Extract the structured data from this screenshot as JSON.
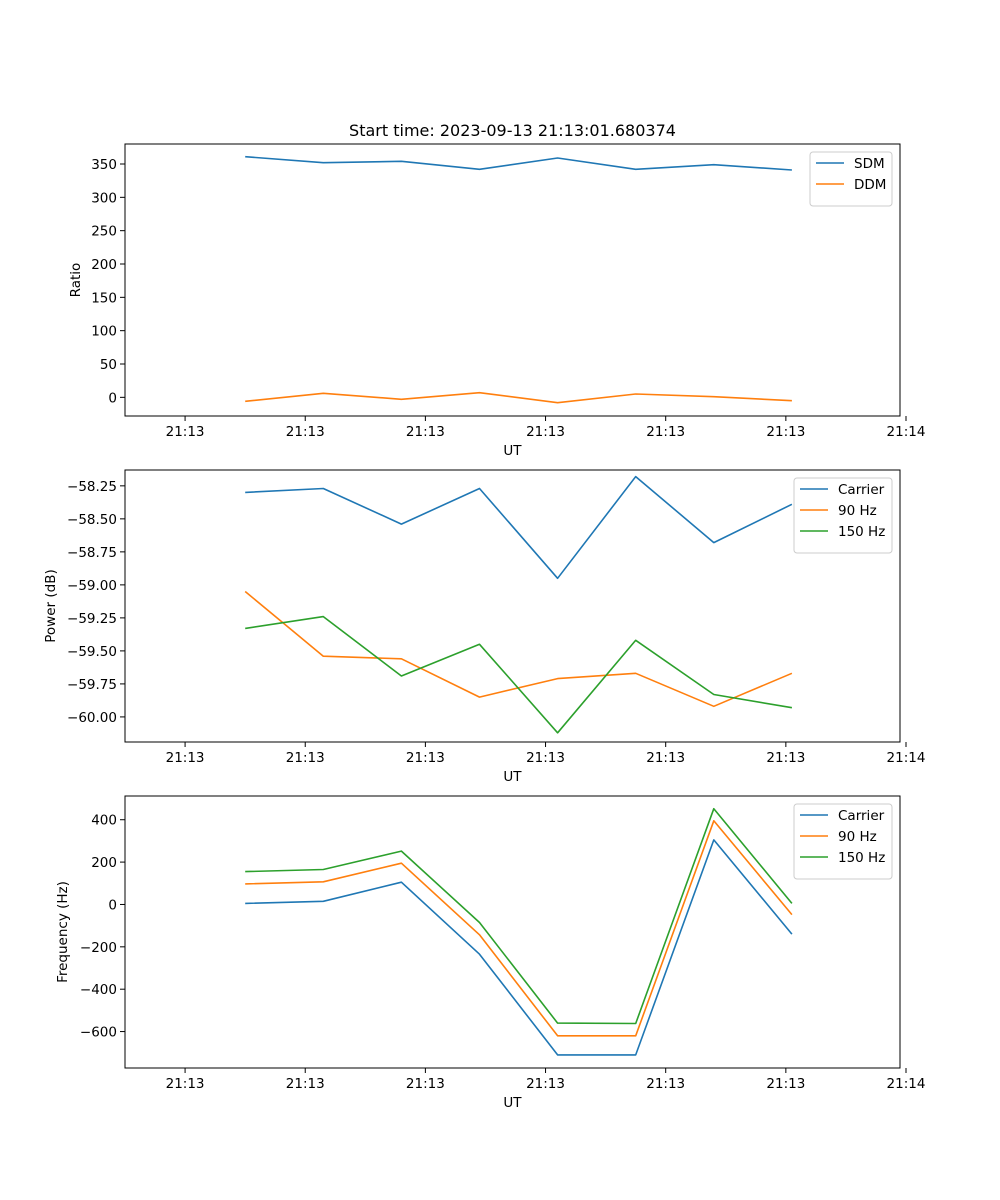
{
  "chart_data": [
    {
      "type": "line",
      "title": "Start time: 2023-09-13 21:13:01.680374",
      "xlabel": "UT",
      "ylabel": "Ratio",
      "x_tick_labels": [
        "21:13",
        "21:13",
        "21:13",
        "21:13",
        "21:13",
        "21:13",
        "21:14"
      ],
      "x": [
        0.5,
        1.15,
        1.8,
        2.45,
        3.1,
        3.75,
        4.4,
        5.05
      ],
      "xlim": [
        -0.5,
        5.95
      ],
      "ylim": [
        -28,
        380
      ],
      "yticks": [
        0,
        50,
        100,
        150,
        200,
        250,
        300,
        350
      ],
      "ytick_labels": [
        "0",
        "50",
        "100",
        "150",
        "200",
        "250",
        "300",
        "350"
      ],
      "legend_loc": "top-right",
      "series": [
        {
          "name": "SDM",
          "color": "#1f77b4",
          "values": [
            361,
            352,
            354,
            342,
            359,
            342,
            349,
            341
          ]
        },
        {
          "name": "DDM",
          "color": "#ff7f0e",
          "values": [
            -6,
            6,
            -3,
            7,
            -8,
            5,
            1,
            -5
          ]
        }
      ]
    },
    {
      "type": "line",
      "title": "",
      "xlabel": "UT",
      "ylabel": "Power (dB)",
      "x_tick_labels": [
        "21:13",
        "21:13",
        "21:13",
        "21:13",
        "21:13",
        "21:13",
        "21:14"
      ],
      "x": [
        0.5,
        1.15,
        1.8,
        2.45,
        3.1,
        3.75,
        4.4,
        5.05
      ],
      "xlim": [
        -0.5,
        5.95
      ],
      "ylim": [
        -60.19,
        -58.13
      ],
      "yticks": [
        -60.0,
        -59.75,
        -59.5,
        -59.25,
        -59.0,
        -58.75,
        -58.5,
        -58.25
      ],
      "ytick_labels": [
        "−60.00",
        "−59.75",
        "−59.50",
        "−59.25",
        "−59.00",
        "−58.75",
        "−58.50",
        "−58.25"
      ],
      "legend_loc": "top-right",
      "series": [
        {
          "name": "Carrier",
          "color": "#1f77b4",
          "values": [
            -58.3,
            -58.27,
            -58.54,
            -58.27,
            -58.95,
            -58.18,
            -58.68,
            -58.39
          ]
        },
        {
          "name": "90 Hz",
          "color": "#ff7f0e",
          "values": [
            -59.05,
            -59.54,
            -59.56,
            -59.85,
            -59.71,
            -59.67,
            -59.92,
            -59.67
          ]
        },
        {
          "name": "150 Hz",
          "color": "#2ca02c",
          "values": [
            -59.33,
            -59.24,
            -59.69,
            -59.45,
            -60.12,
            -59.42,
            -59.83,
            -59.93
          ]
        }
      ]
    },
    {
      "type": "line",
      "title": "",
      "xlabel": "UT",
      "ylabel": "Frequency (Hz)",
      "x_tick_labels": [
        "21:13",
        "21:13",
        "21:13",
        "21:13",
        "21:13",
        "21:13",
        "21:14"
      ],
      "x": [
        0.5,
        1.15,
        1.8,
        2.45,
        3.1,
        3.75,
        4.4,
        5.05
      ],
      "xlim": [
        -0.5,
        5.95
      ],
      "ylim": [
        -772,
        512
      ],
      "yticks": [
        -600,
        -400,
        -200,
        0,
        200,
        400
      ],
      "ytick_labels": [
        "−600",
        "−400",
        "−200",
        "0",
        "200",
        "400"
      ],
      "legend_loc": "top-right",
      "series": [
        {
          "name": "Carrier",
          "color": "#1f77b4",
          "values": [
            5,
            15,
            105,
            -235,
            -710,
            -710,
            305,
            -140
          ]
        },
        {
          "name": "90 Hz",
          "color": "#ff7f0e",
          "values": [
            97,
            107,
            195,
            -143,
            -620,
            -620,
            395,
            -48
          ]
        },
        {
          "name": "150 Hz",
          "color": "#2ca02c",
          "values": [
            155,
            165,
            252,
            -85,
            -560,
            -562,
            452,
            5
          ]
        }
      ]
    }
  ]
}
